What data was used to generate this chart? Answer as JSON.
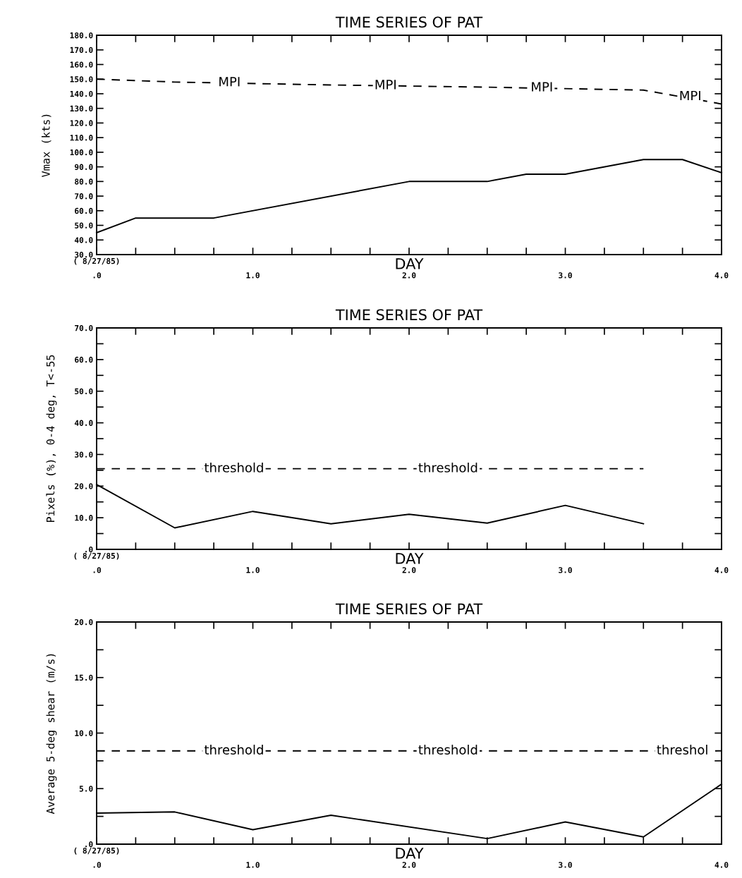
{
  "chart_data": [
    {
      "type": "line",
      "title": "TIME SERIES OF PAT",
      "xlabel": "DAY",
      "ylabel": "Vmax (kts)",
      "series": [
        {
          "x": [
            0,
            0.25,
            0.75,
            2.0,
            2.5,
            2.75,
            3.0,
            3.5,
            3.75,
            4.0
          ],
          "values": [
            45,
            55,
            55,
            80,
            80,
            85,
            85,
            95,
            95,
            86
          ],
          "color": "#000000",
          "line_style": "solid"
        },
        {
          "x": [
            0,
            0.5,
            1.5,
            2.5,
            3.5,
            4.0
          ],
          "values": [
            150,
            148,
            146,
            144.5,
            142.5,
            133
          ],
          "color": "#000000",
          "line_style": "dashed"
        }
      ],
      "annotations": [
        "( 8/27/85)",
        {
          "text": "MPI",
          "x": 0.85,
          "y": 147.5
        },
        {
          "text": "MPI",
          "x": 1.85,
          "y": 145.5
        },
        {
          "text": "MPI",
          "x": 2.85,
          "y": 144
        },
        {
          "text": "MPI",
          "x": 3.8,
          "y": 138
        }
      ],
      "xlim": [
        0,
        4
      ],
      "ylim": [
        30,
        180
      ],
      "xticks": [
        {
          "value": 0,
          "label": ".0"
        },
        {
          "value": 0.25,
          "label": null
        },
        {
          "value": 0.5,
          "label": null
        },
        {
          "value": 0.75,
          "label": null
        },
        {
          "value": 1,
          "label": "1.0"
        },
        {
          "value": 1.25,
          "label": null
        },
        {
          "value": 1.5,
          "label": null
        },
        {
          "value": 1.75,
          "label": null
        },
        {
          "value": 2,
          "label": "2.0"
        },
        {
          "value": 2.25,
          "label": null
        },
        {
          "value": 2.5,
          "label": null
        },
        {
          "value": 2.75,
          "label": null
        },
        {
          "value": 3,
          "label": "3.0"
        },
        {
          "value": 3.25,
          "label": null
        },
        {
          "value": 3.5,
          "label": null
        },
        {
          "value": 3.75,
          "label": null
        },
        {
          "value": 4,
          "label": "4.0"
        }
      ],
      "yticks": [
        {
          "value": 30,
          "label": "30.0"
        },
        {
          "value": 40,
          "label": "40.0"
        },
        {
          "value": 50,
          "label": "50.0"
        },
        {
          "value": 60,
          "label": "60.0"
        },
        {
          "value": 70,
          "label": "70.0"
        },
        {
          "value": 80,
          "label": "80.0"
        },
        {
          "value": 90,
          "label": "90.0"
        },
        {
          "value": 100,
          "label": "100.0"
        },
        {
          "value": 110,
          "label": "110.0"
        },
        {
          "value": 120,
          "label": "120.0"
        },
        {
          "value": 130,
          "label": "130.0"
        },
        {
          "value": 140,
          "label": "140.0"
        },
        {
          "value": 150,
          "label": "150.0"
        },
        {
          "value": 160,
          "label": "160.0"
        },
        {
          "value": 170,
          "label": "170.0"
        },
        {
          "value": 180,
          "label": "180.0"
        }
      ],
      "grid": false,
      "marker": "none"
    },
    {
      "type": "line",
      "title": "TIME SERIES OF PAT",
      "xlabel": "DAY",
      "ylabel": "Pixels (%), 0-4 deg, T<-55",
      "series": [
        {
          "x": [
            0,
            0.5,
            1.0,
            1.5,
            2.0,
            2.5,
            3.0,
            3.5
          ],
          "values": [
            20.5,
            6.8,
            12.0,
            8.1,
            11.1,
            8.3,
            13.9,
            8.1
          ],
          "color": "#000000",
          "line_style": "solid"
        },
        {
          "x": [
            0,
            3.5
          ],
          "values": [
            25.5,
            25.5
          ],
          "color": "#000000",
          "line_style": "dashed"
        }
      ],
      "annotations": [
        "( 8/27/85)",
        {
          "text": "threshold",
          "x": 0.88,
          "y": 25.5
        },
        {
          "text": "threshold",
          "x": 2.25,
          "y": 25.5
        }
      ],
      "xlim": [
        0,
        4
      ],
      "ylim": [
        0,
        70
      ],
      "xticks": [
        {
          "value": 0,
          "label": ".0"
        },
        {
          "value": 0.25,
          "label": null
        },
        {
          "value": 0.5,
          "label": null
        },
        {
          "value": 0.75,
          "label": null
        },
        {
          "value": 1,
          "label": "1.0"
        },
        {
          "value": 1.25,
          "label": null
        },
        {
          "value": 1.5,
          "label": null
        },
        {
          "value": 1.75,
          "label": null
        },
        {
          "value": 2,
          "label": "2.0"
        },
        {
          "value": 2.25,
          "label": null
        },
        {
          "value": 2.5,
          "label": null
        },
        {
          "value": 2.75,
          "label": null
        },
        {
          "value": 3,
          "label": "3.0"
        },
        {
          "value": 3.25,
          "label": null
        },
        {
          "value": 3.5,
          "label": null
        },
        {
          "value": 3.75,
          "label": null
        },
        {
          "value": 4,
          "label": "4.0"
        }
      ],
      "yticks": [
        {
          "value": 0,
          "label": ".0"
        },
        {
          "value": 5,
          "label": null
        },
        {
          "value": 10,
          "label": "10.0"
        },
        {
          "value": 15,
          "label": null
        },
        {
          "value": 20,
          "label": "20.0"
        },
        {
          "value": 25,
          "label": null
        },
        {
          "value": 30,
          "label": "30.0"
        },
        {
          "value": 35,
          "label": null
        },
        {
          "value": 40,
          "label": "40.0"
        },
        {
          "value": 45,
          "label": null
        },
        {
          "value": 50,
          "label": "50.0"
        },
        {
          "value": 55,
          "label": null
        },
        {
          "value": 60,
          "label": "60.0"
        },
        {
          "value": 65,
          "label": null
        },
        {
          "value": 70,
          "label": "70.0"
        }
      ],
      "grid": false,
      "marker": "none"
    },
    {
      "type": "line",
      "title": "TIME SERIES OF PAT",
      "xlabel": "DAY",
      "ylabel": "Average 5-deg shear (m/s)",
      "series": [
        {
          "x": [
            0,
            0.5,
            1.0,
            1.5,
            2.5,
            3.0,
            3.5,
            4.0
          ],
          "values": [
            2.8,
            2.9,
            1.3,
            2.6,
            0.5,
            2.0,
            0.65,
            5.4
          ],
          "color": "#000000",
          "line_style": "solid"
        },
        {
          "x": [
            0,
            4.0
          ],
          "values": [
            8.4,
            8.4
          ],
          "color": "#000000",
          "line_style": "dashed"
        }
      ],
      "annotations": [
        "( 8/27/85)",
        {
          "text": "threshold",
          "x": 0.88,
          "y": 8.4
        },
        {
          "text": "threshold",
          "x": 2.25,
          "y": 8.4
        },
        {
          "text": "threshol",
          "x": 3.75,
          "y": 8.4
        }
      ],
      "xlim": [
        0,
        4
      ],
      "ylim": [
        0,
        20
      ],
      "xticks": [
        {
          "value": 0,
          "label": ".0"
        },
        {
          "value": 0.25,
          "label": null
        },
        {
          "value": 0.5,
          "label": null
        },
        {
          "value": 0.75,
          "label": null
        },
        {
          "value": 1,
          "label": "1.0"
        },
        {
          "value": 1.25,
          "label": null
        },
        {
          "value": 1.5,
          "label": null
        },
        {
          "value": 1.75,
          "label": null
        },
        {
          "value": 2,
          "label": "2.0"
        },
        {
          "value": 2.25,
          "label": null
        },
        {
          "value": 2.5,
          "label": null
        },
        {
          "value": 2.75,
          "label": null
        },
        {
          "value": 3,
          "label": "3.0"
        },
        {
          "value": 3.25,
          "label": null
        },
        {
          "value": 3.5,
          "label": null
        },
        {
          "value": 3.75,
          "label": null
        },
        {
          "value": 4,
          "label": "4.0"
        }
      ],
      "yticks": [
        {
          "value": 0,
          "label": ".0"
        },
        {
          "value": 2.5,
          "label": null
        },
        {
          "value": 5,
          "label": "5.0"
        },
        {
          "value": 7.5,
          "label": null
        },
        {
          "value": 10,
          "label": "10.0"
        },
        {
          "value": 12.5,
          "label": null
        },
        {
          "value": 15,
          "label": "15.0"
        },
        {
          "value": 17.5,
          "label": null
        },
        {
          "value": 20,
          "label": "20.0"
        }
      ],
      "grid": false,
      "marker": "none"
    }
  ]
}
